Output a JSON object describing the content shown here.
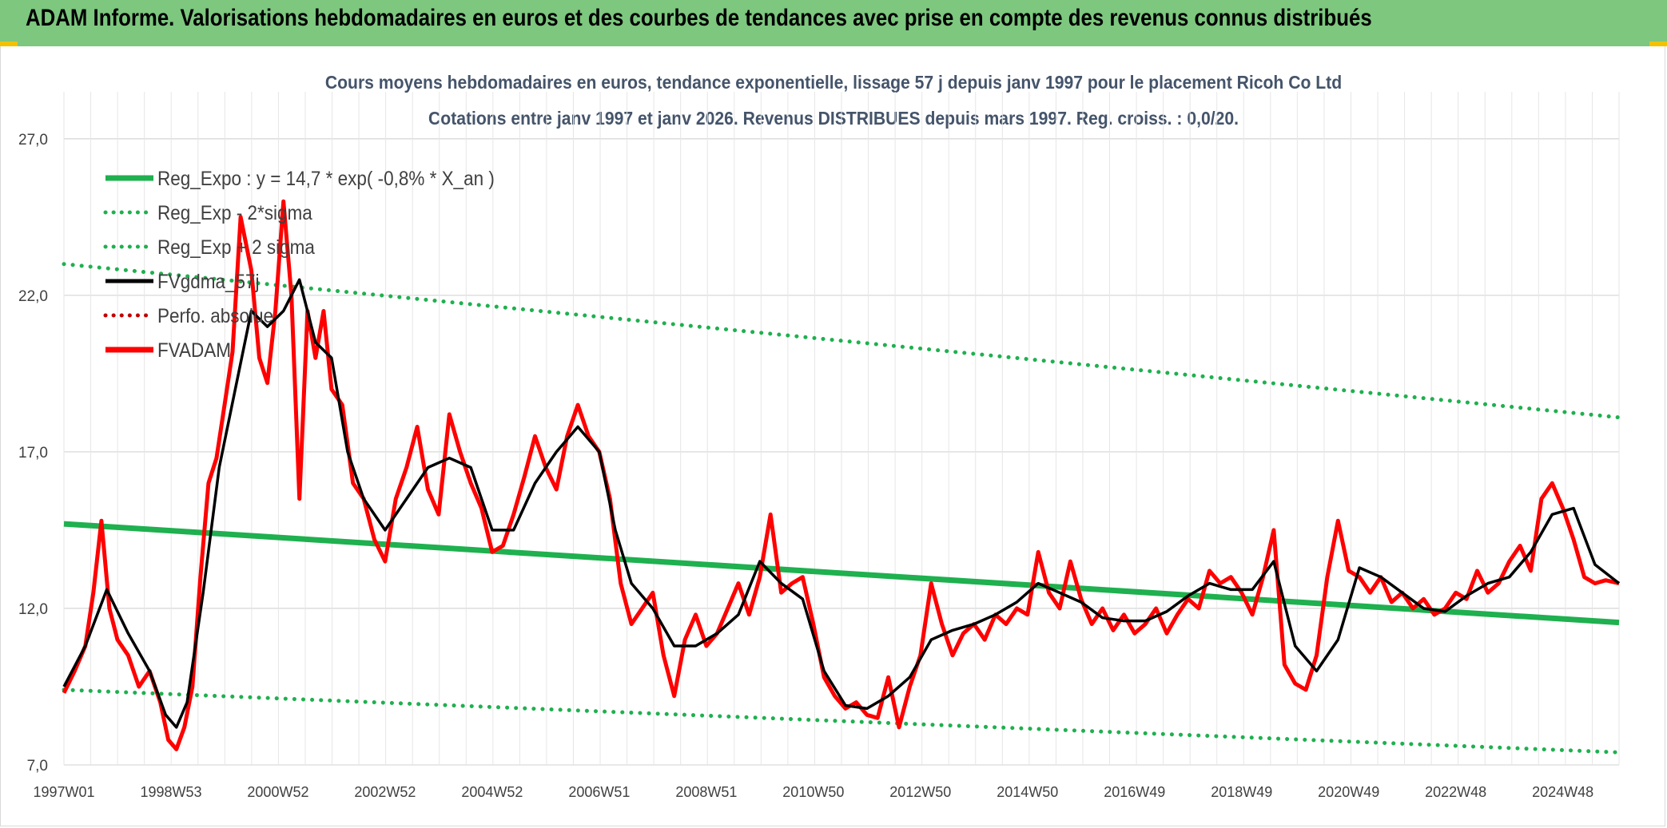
{
  "banner": {
    "title": "ADAM Informe. Valorisations hebdomadaires en euros et des courbes de tendances avec prise en compte des revenus connus distribués"
  },
  "colors": {
    "banner_bg": "#7dc77f",
    "regression": "#1fb04f",
    "smoothed": "#000000",
    "price": "#ff0000",
    "perfo": "#c00000",
    "title": "#44546a"
  },
  "chart_data": {
    "type": "line",
    "title": "Cours moyens hebdomadaires en euros, tendance exponentielle, lissage 57 j depuis janv 1997 pour le placement Ricoh Co Ltd",
    "subtitle": "Cotations entre janv 1997 et janv 2026. Revenus DISTRIBUES depuis mars 1997. Reg. croiss. : 0,0/20.",
    "x_tick_labels": [
      "1997W01",
      "1998W53",
      "2000W52",
      "2002W52",
      "2004W52",
      "2006W51",
      "2008W51",
      "2010W50",
      "2012W50",
      "2014W50",
      "2016W49",
      "2018W49",
      "2020W49",
      "2022W48",
      "2024W48"
    ],
    "y_tick_labels": [
      "7,0",
      "12,0",
      "17,0",
      "22,0",
      "27,0"
    ],
    "ylim": [
      7,
      28.5
    ],
    "xlim": [
      1997.0,
      2026.05
    ],
    "grid": true,
    "legend_position": "top-left",
    "legend": [
      {
        "label": "Reg_Expo : y = 14,7 * exp( -0,8% *  X_an )",
        "style": "solid-thick",
        "color": "#1fb04f"
      },
      {
        "label": "Reg_Exp - 2*sigma",
        "style": "dotted",
        "color": "#1fb04f"
      },
      {
        "label": "Reg_Exp + 2 sigma",
        "style": "dotted",
        "color": "#1fb04f"
      },
      {
        "label": "FVgdma_57j",
        "style": "solid",
        "color": "#000000"
      },
      {
        "label": "Perfo. absolue",
        "style": "dotted",
        "color": "#c00000"
      },
      {
        "label": "FVADAM",
        "style": "solid-thick",
        "color": "#ff0000"
      }
    ],
    "series": [
      {
        "name": "Reg_Expo : y = 14,7 * exp( -0,8% *  X_an )",
        "x": [
          1997.0,
          2026.05
        ],
        "values": [
          14.7,
          11.55
        ]
      },
      {
        "name": "Reg_Exp - 2*sigma",
        "x": [
          1997.0,
          2026.05
        ],
        "values": [
          9.4,
          7.4
        ]
      },
      {
        "name": "Reg_Exp + 2 sigma",
        "x": [
          1997.0,
          2026.05
        ],
        "values": [
          23.0,
          18.1
        ]
      },
      {
        "name": "FVADAM",
        "x": [
          1997.0,
          1997.2,
          1997.4,
          1997.55,
          1997.7,
          1997.85,
          1998.0,
          1998.2,
          1998.4,
          1998.6,
          1998.8,
          1998.95,
          1999.1,
          1999.25,
          1999.4,
          1999.55,
          1999.7,
          1999.85,
          2000.0,
          2000.15,
          2000.3,
          2000.5,
          2000.65,
          2000.8,
          2000.95,
          2001.1,
          2001.25,
          2001.4,
          2001.55,
          2001.7,
          2001.85,
          2002.0,
          2002.2,
          2002.4,
          2002.6,
          2002.8,
          2003.0,
          2003.2,
          2003.4,
          2003.6,
          2003.8,
          2004.0,
          2004.2,
          2004.4,
          2004.6,
          2004.8,
          2005.0,
          2005.2,
          2005.4,
          2005.6,
          2005.8,
          2006.0,
          2006.2,
          2006.4,
          2006.6,
          2006.8,
          2007.0,
          2007.2,
          2007.4,
          2007.6,
          2007.8,
          2008.0,
          2008.2,
          2008.4,
          2008.6,
          2008.8,
          2009.0,
          2009.2,
          2009.4,
          2009.6,
          2009.8,
          2010.0,
          2010.2,
          2010.4,
          2010.6,
          2010.8,
          2011.0,
          2011.2,
          2011.4,
          2011.6,
          2011.8,
          2012.0,
          2012.2,
          2012.4,
          2012.6,
          2012.8,
          2013.0,
          2013.2,
          2013.4,
          2013.6,
          2013.8,
          2014.0,
          2014.2,
          2014.4,
          2014.6,
          2014.8,
          2015.0,
          2015.2,
          2015.4,
          2015.6,
          2015.8,
          2016.0,
          2016.2,
          2016.4,
          2016.6,
          2016.8,
          2017.0,
          2017.2,
          2017.4,
          2017.6,
          2017.8,
          2018.0,
          2018.2,
          2018.4,
          2018.6,
          2018.8,
          2019.0,
          2019.2,
          2019.4,
          2019.6,
          2019.8,
          2020.0,
          2020.2,
          2020.4,
          2020.6,
          2020.8,
          2021.0,
          2021.2,
          2021.4,
          2021.6,
          2021.8,
          2022.0,
          2022.2,
          2022.4,
          2022.6,
          2022.8,
          2023.0,
          2023.2,
          2023.4,
          2023.6,
          2023.8,
          2024.0,
          2024.2,
          2024.4,
          2024.6,
          2024.8,
          2025.0,
          2025.2,
          2025.4,
          2025.6,
          2025.8,
          2026.05
        ],
        "values": [
          9.3,
          10.0,
          10.8,
          12.5,
          14.8,
          12.0,
          11.0,
          10.5,
          9.5,
          10.0,
          9.0,
          7.8,
          7.5,
          8.2,
          9.5,
          13.0,
          16.0,
          16.8,
          18.5,
          20.2,
          24.5,
          22.8,
          20.0,
          19.2,
          21.5,
          25.0,
          22.0,
          15.5,
          21.5,
          20.0,
          21.5,
          19.0,
          18.5,
          16.0,
          15.5,
          14.2,
          13.5,
          15.5,
          16.5,
          17.8,
          15.8,
          15.0,
          18.2,
          17.0,
          16.0,
          15.2,
          13.8,
          14.0,
          15.0,
          16.2,
          17.5,
          16.5,
          15.8,
          17.5,
          18.5,
          17.5,
          17.0,
          15.5,
          12.8,
          11.5,
          12.0,
          12.5,
          10.5,
          9.2,
          11.0,
          11.8,
          10.8,
          11.2,
          12.0,
          12.8,
          11.8,
          13.0,
          15.0,
          12.5,
          12.8,
          13.0,
          11.5,
          9.8,
          9.2,
          8.8,
          9.0,
          8.6,
          8.5,
          9.8,
          8.2,
          9.5,
          10.5,
          12.8,
          11.5,
          10.5,
          11.2,
          11.5,
          11.0,
          11.8,
          11.5,
          12.0,
          11.8,
          13.8,
          12.5,
          12.0,
          13.5,
          12.3,
          11.5,
          12.0,
          11.3,
          11.8,
          11.2,
          11.5,
          12.0,
          11.2,
          11.8,
          12.3,
          12.0,
          13.2,
          12.8,
          13.0,
          12.5,
          11.8,
          13.0,
          14.5,
          10.2,
          9.6,
          9.4,
          10.5,
          13.0,
          14.8,
          13.2,
          13.0,
          12.5,
          13.0,
          12.2,
          12.5,
          12.0,
          12.3,
          11.8,
          12.0,
          12.5,
          12.3,
          13.2,
          12.5,
          12.8,
          13.5,
          14.0,
          13.2,
          15.5,
          16.0,
          15.2,
          14.2,
          13.0,
          12.8,
          12.9,
          12.8
        ]
      },
      {
        "name": "FVgdma_57j",
        "x": [
          1997.0,
          1997.4,
          1997.8,
          1998.2,
          1998.6,
          1998.9,
          1999.1,
          1999.3,
          1999.6,
          1999.9,
          2000.2,
          2000.5,
          2000.8,
          2001.1,
          2001.4,
          2001.7,
          2002.0,
          2002.3,
          2002.6,
          2003.0,
          2003.4,
          2003.8,
          2004.2,
          2004.6,
          2005.0,
          2005.4,
          2005.8,
          2006.2,
          2006.6,
          2007.0,
          2007.3,
          2007.6,
          2008.0,
          2008.4,
          2008.8,
          2009.2,
          2009.6,
          2010.0,
          2010.4,
          2010.8,
          2011.2,
          2011.6,
          2012.0,
          2012.4,
          2012.8,
          2013.2,
          2013.6,
          2014.0,
          2014.4,
          2014.8,
          2015.2,
          2015.6,
          2016.0,
          2016.4,
          2016.8,
          2017.2,
          2017.6,
          2018.0,
          2018.4,
          2018.8,
          2019.2,
          2019.6,
          2020.0,
          2020.4,
          2020.8,
          2021.2,
          2021.6,
          2022.0,
          2022.4,
          2022.8,
          2023.2,
          2023.6,
          2024.0,
          2024.4,
          2024.8,
          2025.2,
          2025.6,
          2026.05
        ],
        "values": [
          9.5,
          10.8,
          12.6,
          11.2,
          10.0,
          8.6,
          8.2,
          9.0,
          12.5,
          16.5,
          19.0,
          21.5,
          21.0,
          21.5,
          22.5,
          20.5,
          20.0,
          17.0,
          15.5,
          14.5,
          15.5,
          16.5,
          16.8,
          16.5,
          14.5,
          14.5,
          16.0,
          17.0,
          17.8,
          17.0,
          14.5,
          12.8,
          12.0,
          10.8,
          10.8,
          11.2,
          11.8,
          13.5,
          12.8,
          12.3,
          10.0,
          8.9,
          8.8,
          9.2,
          9.8,
          11.0,
          11.3,
          11.5,
          11.8,
          12.2,
          12.8,
          12.5,
          12.2,
          11.7,
          11.6,
          11.6,
          11.9,
          12.4,
          12.8,
          12.6,
          12.6,
          13.5,
          10.8,
          10.0,
          11.0,
          13.3,
          13.0,
          12.5,
          12.0,
          11.9,
          12.4,
          12.8,
          13.0,
          13.8,
          15.0,
          15.2,
          13.4,
          12.8
        ]
      },
      {
        "name": "Perfo. absolue",
        "x": [],
        "values": []
      }
    ]
  }
}
